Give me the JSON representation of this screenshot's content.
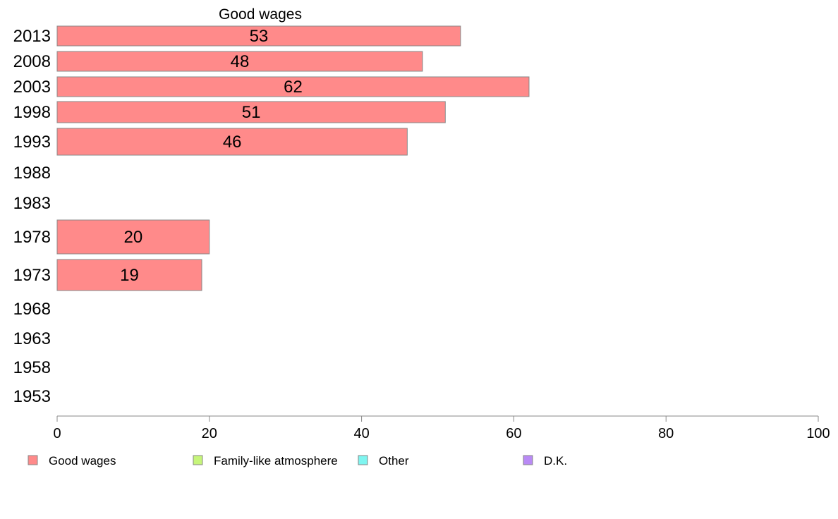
{
  "chart_data": {
    "type": "bar",
    "orientation": "horizontal",
    "title": "Good wages",
    "categories": [
      "2013",
      "2008",
      "2003",
      "1998",
      "1993",
      "1988",
      "1983",
      "1978",
      "1973",
      "1968",
      "1963",
      "1958",
      "1953"
    ],
    "series": [
      {
        "name": "Good wages",
        "values": [
          53,
          48,
          62,
          51,
          46,
          null,
          null,
          20,
          19,
          null,
          null,
          null,
          null
        ]
      }
    ],
    "xlim": [
      0,
      100
    ],
    "xticks": [
      "0",
      "20",
      "40",
      "60",
      "80",
      "100"
    ],
    "grid": false,
    "legend": {
      "placement": "bottom",
      "entries": [
        "Good wages",
        "Family-like atmosphere",
        "Other",
        "D.K."
      ]
    }
  },
  "colors": {
    "Good wages": "#ff8a8a",
    "Family-like atmosphere": "#c6f57a",
    "Other": "#7ff5f0",
    "D.K.": "#b98af5",
    "bar_stroke": "#888888",
    "axis": "#888888"
  }
}
